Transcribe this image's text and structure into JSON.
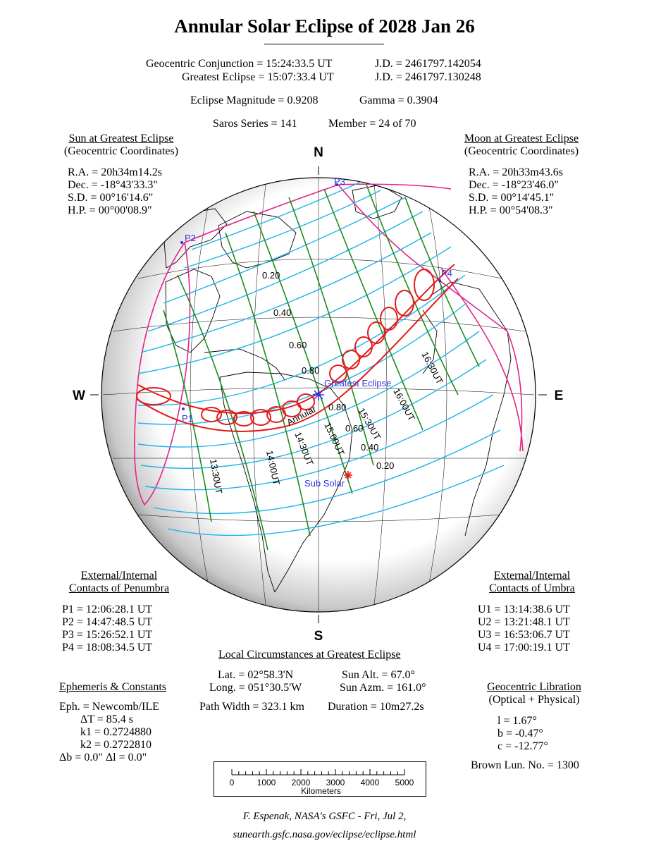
{
  "title": "Annular Solar Eclipse of  2028 Jan 26",
  "header": {
    "conj_label": "Geocentric Conjunction = ",
    "conj_time": "15:24:33.5 UT",
    "conj_jd": "J.D. =  2461797.142054",
    "ge_label": "Greatest Eclipse = ",
    "ge_time": "15:07:33.4 UT",
    "ge_jd": "J.D. =  2461797.130248",
    "magnitude": "Eclipse Magnitude =  0.9208",
    "gamma": "Gamma =  0.3904",
    "saros": "Saros Series = 141",
    "member": "Member = 24 of 70"
  },
  "sun": {
    "heading": "Sun at Greatest Eclipse",
    "sub": "(Geocentric Coordinates)",
    "rows": [
      "R.A. = 20h34m14.2s",
      "Dec. = -18°43'33.3\"",
      "S.D. = 00°16'14.6\"",
      "H.P. = 00°00'08.9\""
    ]
  },
  "moon": {
    "heading": "Moon at Greatest Eclipse",
    "sub": "(Geocentric Coordinates)",
    "rows": [
      "R.A. = 20h33m43.6s",
      "Dec. = -18°23'46.0\"",
      "S.D. = 00°14'45.1\"",
      "H.P. = 00°54'08.3\""
    ]
  },
  "penumbra": {
    "heading1": "External/Internal",
    "heading2": "Contacts of Penumbra",
    "rows": [
      "P1 = 12:06:28.1 UT",
      "P2 = 14:47:48.5 UT",
      "P3 = 15:26:52.1 UT",
      "P4 = 18:08:34.5 UT"
    ]
  },
  "umbra": {
    "heading1": "External/Internal",
    "heading2": "Contacts of Umbra",
    "rows": [
      "U1 = 13:14:38.6 UT",
      "U2 = 13:21:48.1 UT",
      "U3 = 16:53:06.7 UT",
      "U4 = 17:00:19.1 UT"
    ]
  },
  "local": {
    "heading": "Local Circumstances at Greatest Eclipse",
    "lat": "Lat. =  02°58.3'N",
    "long": "Long. = 051°30.5'W",
    "sun_alt": "Sun Alt. =  67.0°",
    "sun_azm": "Sun Azm. = 161.0°",
    "path_width": "Path Width = 323.1 km",
    "duration": "Duration =  10m27.2s"
  },
  "ephemeris": {
    "heading": "Ephemeris & Constants",
    "rows": [
      "Eph. = Newcomb/ILE",
      "ΔT =    85.4 s",
      "k1 = 0.2724880",
      "k2 = 0.2722810",
      "Δb =   0.0\"    Δl =   0.0\""
    ]
  },
  "libration": {
    "heading": "Geocentric Libration",
    "sub": "(Optical + Physical)",
    "rows": [
      "l =    1.67°",
      "b =  -0.47°",
      "c = -12.77°"
    ],
    "brown": "Brown Lun. No. = 1300"
  },
  "map": {
    "cardinals": {
      "n": "N",
      "s": "S",
      "w": "W",
      "e": "E"
    },
    "contacts": [
      "P1",
      "P2",
      "P3",
      "P4"
    ],
    "magnitude_labels": [
      "0.20",
      "0.40",
      "0.60",
      "0.80",
      "0.80",
      "0.60",
      "0.40",
      "0.20"
    ],
    "time_labels": [
      "13:30UT",
      "14:00UT",
      "14:30UT",
      "15:00UT",
      "15:30UT",
      "16:00UT",
      "16:30UT"
    ],
    "greatest_label": "Greatest Eclipse",
    "annular_label": "Annular",
    "subsolar_label": "Sub Solar",
    "colors": {
      "penumbra": "#e2248c",
      "magnitude": "#1eb4e6",
      "time": "#1a8c1a",
      "umbra": "#e41a1a",
      "label": "#3333dd"
    }
  },
  "scale": {
    "ticks": [
      "0",
      "1000",
      "2000",
      "3000",
      "4000",
      "5000"
    ],
    "unit": "Kilometers"
  },
  "footer": {
    "line1": "F. Espenak, NASA's GSFC - Fri, Jul 2,",
    "line2": "sunearth.gsfc.nasa.gov/eclipse/eclipse.html"
  }
}
